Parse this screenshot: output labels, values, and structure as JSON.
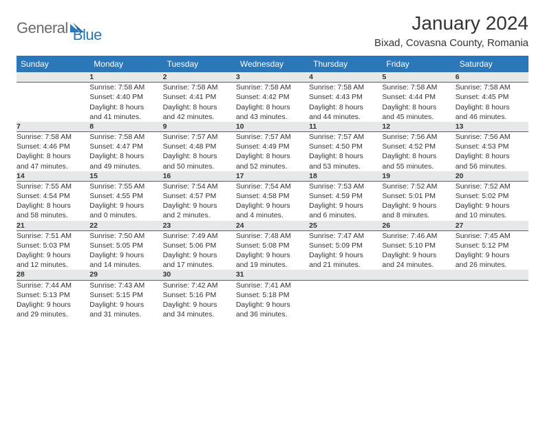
{
  "brand": {
    "first": "General",
    "second": "Blue",
    "accent_color": "#2b77b7",
    "text_color": "#6a6a6a"
  },
  "title": "January 2024",
  "location": "Bixad, Covasna County, Romania",
  "day_headers": [
    "Sunday",
    "Monday",
    "Tuesday",
    "Wednesday",
    "Thursday",
    "Friday",
    "Saturday"
  ],
  "colors": {
    "header_bg": "#2b77b7",
    "header_text": "#ffffff",
    "daynum_bg": "#e8e8e8",
    "rule": "#2b6aa8",
    "body_text": "#333333"
  },
  "weeks": [
    {
      "daynums": [
        "",
        "1",
        "2",
        "3",
        "4",
        "5",
        "6"
      ],
      "details": [
        null,
        {
          "sunrise": "Sunrise: 7:58 AM",
          "sunset": "Sunset: 4:40 PM",
          "d1": "Daylight: 8 hours",
          "d2": "and 41 minutes."
        },
        {
          "sunrise": "Sunrise: 7:58 AM",
          "sunset": "Sunset: 4:41 PM",
          "d1": "Daylight: 8 hours",
          "d2": "and 42 minutes."
        },
        {
          "sunrise": "Sunrise: 7:58 AM",
          "sunset": "Sunset: 4:42 PM",
          "d1": "Daylight: 8 hours",
          "d2": "and 43 minutes."
        },
        {
          "sunrise": "Sunrise: 7:58 AM",
          "sunset": "Sunset: 4:43 PM",
          "d1": "Daylight: 8 hours",
          "d2": "and 44 minutes."
        },
        {
          "sunrise": "Sunrise: 7:58 AM",
          "sunset": "Sunset: 4:44 PM",
          "d1": "Daylight: 8 hours",
          "d2": "and 45 minutes."
        },
        {
          "sunrise": "Sunrise: 7:58 AM",
          "sunset": "Sunset: 4:45 PM",
          "d1": "Daylight: 8 hours",
          "d2": "and 46 minutes."
        }
      ]
    },
    {
      "daynums": [
        "7",
        "8",
        "9",
        "10",
        "11",
        "12",
        "13"
      ],
      "details": [
        {
          "sunrise": "Sunrise: 7:58 AM",
          "sunset": "Sunset: 4:46 PM",
          "d1": "Daylight: 8 hours",
          "d2": "and 47 minutes."
        },
        {
          "sunrise": "Sunrise: 7:58 AM",
          "sunset": "Sunset: 4:47 PM",
          "d1": "Daylight: 8 hours",
          "d2": "and 49 minutes."
        },
        {
          "sunrise": "Sunrise: 7:57 AM",
          "sunset": "Sunset: 4:48 PM",
          "d1": "Daylight: 8 hours",
          "d2": "and 50 minutes."
        },
        {
          "sunrise": "Sunrise: 7:57 AM",
          "sunset": "Sunset: 4:49 PM",
          "d1": "Daylight: 8 hours",
          "d2": "and 52 minutes."
        },
        {
          "sunrise": "Sunrise: 7:57 AM",
          "sunset": "Sunset: 4:50 PM",
          "d1": "Daylight: 8 hours",
          "d2": "and 53 minutes."
        },
        {
          "sunrise": "Sunrise: 7:56 AM",
          "sunset": "Sunset: 4:52 PM",
          "d1": "Daylight: 8 hours",
          "d2": "and 55 minutes."
        },
        {
          "sunrise": "Sunrise: 7:56 AM",
          "sunset": "Sunset: 4:53 PM",
          "d1": "Daylight: 8 hours",
          "d2": "and 56 minutes."
        }
      ]
    },
    {
      "daynums": [
        "14",
        "15",
        "16",
        "17",
        "18",
        "19",
        "20"
      ],
      "details": [
        {
          "sunrise": "Sunrise: 7:55 AM",
          "sunset": "Sunset: 4:54 PM",
          "d1": "Daylight: 8 hours",
          "d2": "and 58 minutes."
        },
        {
          "sunrise": "Sunrise: 7:55 AM",
          "sunset": "Sunset: 4:55 PM",
          "d1": "Daylight: 9 hours",
          "d2": "and 0 minutes."
        },
        {
          "sunrise": "Sunrise: 7:54 AM",
          "sunset": "Sunset: 4:57 PM",
          "d1": "Daylight: 9 hours",
          "d2": "and 2 minutes."
        },
        {
          "sunrise": "Sunrise: 7:54 AM",
          "sunset": "Sunset: 4:58 PM",
          "d1": "Daylight: 9 hours",
          "d2": "and 4 minutes."
        },
        {
          "sunrise": "Sunrise: 7:53 AM",
          "sunset": "Sunset: 4:59 PM",
          "d1": "Daylight: 9 hours",
          "d2": "and 6 minutes."
        },
        {
          "sunrise": "Sunrise: 7:52 AM",
          "sunset": "Sunset: 5:01 PM",
          "d1": "Daylight: 9 hours",
          "d2": "and 8 minutes."
        },
        {
          "sunrise": "Sunrise: 7:52 AM",
          "sunset": "Sunset: 5:02 PM",
          "d1": "Daylight: 9 hours",
          "d2": "and 10 minutes."
        }
      ]
    },
    {
      "daynums": [
        "21",
        "22",
        "23",
        "24",
        "25",
        "26",
        "27"
      ],
      "details": [
        {
          "sunrise": "Sunrise: 7:51 AM",
          "sunset": "Sunset: 5:03 PM",
          "d1": "Daylight: 9 hours",
          "d2": "and 12 minutes."
        },
        {
          "sunrise": "Sunrise: 7:50 AM",
          "sunset": "Sunset: 5:05 PM",
          "d1": "Daylight: 9 hours",
          "d2": "and 14 minutes."
        },
        {
          "sunrise": "Sunrise: 7:49 AM",
          "sunset": "Sunset: 5:06 PM",
          "d1": "Daylight: 9 hours",
          "d2": "and 17 minutes."
        },
        {
          "sunrise": "Sunrise: 7:48 AM",
          "sunset": "Sunset: 5:08 PM",
          "d1": "Daylight: 9 hours",
          "d2": "and 19 minutes."
        },
        {
          "sunrise": "Sunrise: 7:47 AM",
          "sunset": "Sunset: 5:09 PM",
          "d1": "Daylight: 9 hours",
          "d2": "and 21 minutes."
        },
        {
          "sunrise": "Sunrise: 7:46 AM",
          "sunset": "Sunset: 5:10 PM",
          "d1": "Daylight: 9 hours",
          "d2": "and 24 minutes."
        },
        {
          "sunrise": "Sunrise: 7:45 AM",
          "sunset": "Sunset: 5:12 PM",
          "d1": "Daylight: 9 hours",
          "d2": "and 26 minutes."
        }
      ]
    },
    {
      "daynums": [
        "28",
        "29",
        "30",
        "31",
        "",
        "",
        ""
      ],
      "details": [
        {
          "sunrise": "Sunrise: 7:44 AM",
          "sunset": "Sunset: 5:13 PM",
          "d1": "Daylight: 9 hours",
          "d2": "and 29 minutes."
        },
        {
          "sunrise": "Sunrise: 7:43 AM",
          "sunset": "Sunset: 5:15 PM",
          "d1": "Daylight: 9 hours",
          "d2": "and 31 minutes."
        },
        {
          "sunrise": "Sunrise: 7:42 AM",
          "sunset": "Sunset: 5:16 PM",
          "d1": "Daylight: 9 hours",
          "d2": "and 34 minutes."
        },
        {
          "sunrise": "Sunrise: 7:41 AM",
          "sunset": "Sunset: 5:18 PM",
          "d1": "Daylight: 9 hours",
          "d2": "and 36 minutes."
        },
        null,
        null,
        null
      ]
    }
  ]
}
